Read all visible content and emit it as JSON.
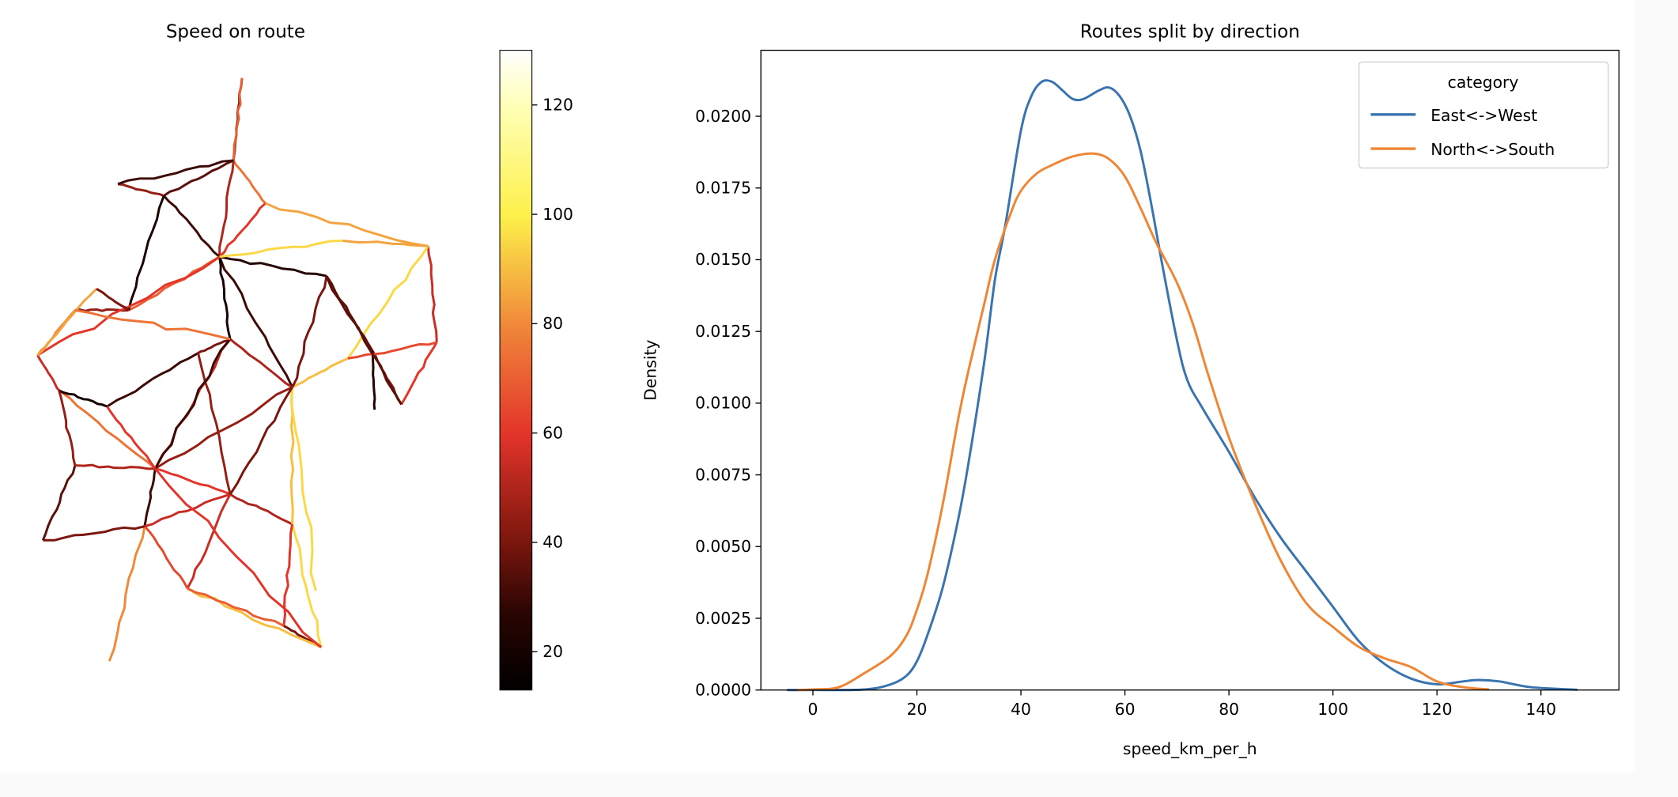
{
  "chart_data": [
    {
      "type": "map",
      "title": "Speed on route",
      "colorbar": {
        "colormap": "hot",
        "range": [
          13,
          130
        ],
        "ticks": [
          20,
          40,
          60,
          80,
          100,
          120
        ],
        "tick_labels": [
          "20",
          "40",
          "60",
          "80",
          "100",
          "120"
        ]
      }
    },
    {
      "type": "line",
      "title": "Routes split by direction",
      "xlabel": "speed_km_per_h",
      "ylabel": "Density",
      "xlim": [
        -10,
        155
      ],
      "ylim": [
        0,
        0.0223
      ],
      "grid": false,
      "x_ticks": [
        0,
        20,
        40,
        60,
        80,
        100,
        120,
        140
      ],
      "x_tick_labels": [
        "0",
        "20",
        "40",
        "60",
        "80",
        "100",
        "120",
        "140"
      ],
      "y_ticks": [
        0,
        0.0025,
        0.005,
        0.0075,
        0.01,
        0.0125,
        0.015,
        0.0175,
        0.02
      ],
      "y_tick_labels": [
        "0.0000",
        "0.0025",
        "0.0050",
        "0.0075",
        "0.0100",
        "0.0125",
        "0.0150",
        "0.0175",
        "0.0200"
      ],
      "legend": {
        "title": "category",
        "placement": "top-right"
      },
      "series": [
        {
          "name": "East<->West",
          "color": "#3a74b0",
          "points": [
            [
              -5,
              0
            ],
            [
              0,
              0
            ],
            [
              10,
              2e-05
            ],
            [
              15,
              0.0002
            ],
            [
              18,
              0.0005
            ],
            [
              20,
              0.001
            ],
            [
              22,
              0.0019
            ],
            [
              25,
              0.0036
            ],
            [
              28,
              0.006
            ],
            [
              30,
              0.008
            ],
            [
              33,
              0.0115
            ],
            [
              35,
              0.0143
            ],
            [
              37,
              0.0162
            ],
            [
              40,
              0.0195
            ],
            [
              42,
              0.0207
            ],
            [
              44,
              0.0212
            ],
            [
              46,
              0.0212
            ],
            [
              48,
              0.0209
            ],
            [
              50,
              0.0206
            ],
            [
              52,
              0.0206
            ],
            [
              55,
              0.0209
            ],
            [
              57,
              0.021
            ],
            [
              59,
              0.0207
            ],
            [
              61,
              0.02
            ],
            [
              63,
              0.0188
            ],
            [
              65,
              0.017
            ],
            [
              67,
              0.015
            ],
            [
              70,
              0.0122
            ],
            [
              72,
              0.0108
            ],
            [
              75,
              0.0098
            ],
            [
              80,
              0.0083
            ],
            [
              85,
              0.0067
            ],
            [
              90,
              0.0053
            ],
            [
              95,
              0.0041
            ],
            [
              100,
              0.0029
            ],
            [
              105,
              0.0017
            ],
            [
              110,
              0.0009
            ],
            [
              115,
              0.0004
            ],
            [
              120,
              0.0002
            ],
            [
              125,
              0.0003
            ],
            [
              128,
              0.00035
            ],
            [
              132,
              0.0003
            ],
            [
              138,
              0.0001
            ],
            [
              147,
              1e-05
            ]
          ]
        },
        {
          "name": "North<->South",
          "color": "#ef8636",
          "points": [
            [
              -3,
              0
            ],
            [
              0,
              2e-05
            ],
            [
              5,
              0.0001
            ],
            [
              10,
              0.0006
            ],
            [
              15,
              0.0012
            ],
            [
              18,
              0.0019
            ],
            [
              20,
              0.0028
            ],
            [
              22,
              0.004
            ],
            [
              25,
              0.0065
            ],
            [
              28,
              0.0095
            ],
            [
              30,
              0.0112
            ],
            [
              33,
              0.0135
            ],
            [
              35,
              0.015
            ],
            [
              38,
              0.0166
            ],
            [
              40,
              0.0174
            ],
            [
              43,
              0.018
            ],
            [
              46,
              0.0183
            ],
            [
              50,
              0.0186
            ],
            [
              54,
              0.0187
            ],
            [
              57,
              0.0185
            ],
            [
              60,
              0.0179
            ],
            [
              63,
              0.0168
            ],
            [
              66,
              0.0156
            ],
            [
              70,
              0.0142
            ],
            [
              73,
              0.0128
            ],
            [
              76,
              0.011
            ],
            [
              80,
              0.0088
            ],
            [
              85,
              0.0065
            ],
            [
              90,
              0.0045
            ],
            [
              95,
              0.003
            ],
            [
              100,
              0.0022
            ],
            [
              105,
              0.0015
            ],
            [
              110,
              0.0011
            ],
            [
              115,
              0.0008
            ],
            [
              120,
              0.0003
            ],
            [
              125,
              0.0001
            ],
            [
              130,
              2e-05
            ]
          ]
        }
      ]
    }
  ]
}
